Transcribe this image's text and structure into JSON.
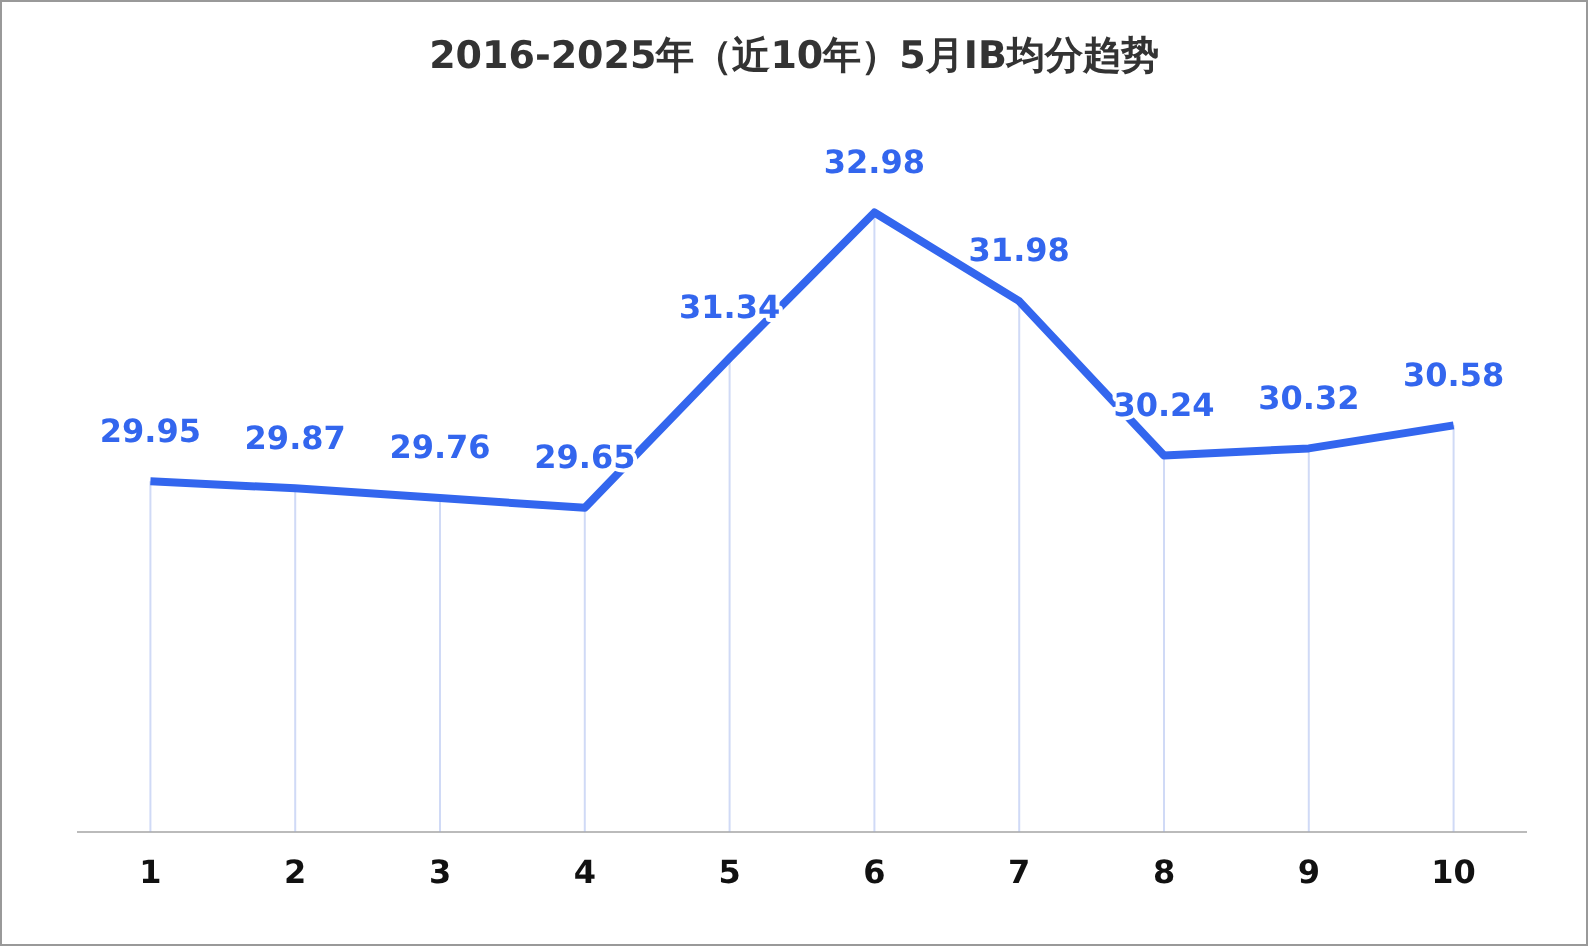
{
  "chart_data": {
    "type": "line",
    "title": "2016-2025年（近10年）5月IB均分趋势",
    "categories": [
      "1",
      "2",
      "3",
      "4",
      "5",
      "6",
      "7",
      "8",
      "9",
      "10"
    ],
    "series": [
      {
        "color": "#3366ee",
        "values": [
          29.95,
          29.87,
          29.76,
          29.65,
          31.34,
          32.98,
          31.98,
          30.24,
          30.32,
          30.58
        ]
      }
    ],
    "tick_labels": "x",
    "grid": "x",
    "legend": false,
    "marker": "none",
    "line_style": "solid",
    "data_labels": true
  }
}
